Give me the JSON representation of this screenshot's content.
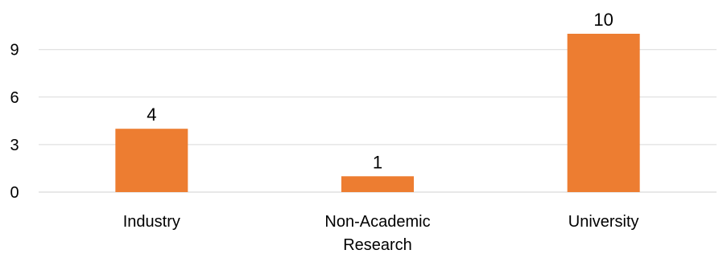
{
  "chart_data": {
    "type": "bar",
    "title": "",
    "xlabel": "",
    "ylabel": "",
    "categories": [
      "Industry",
      "Non-Academic Research",
      "University"
    ],
    "category_lines": [
      [
        "Industry"
      ],
      [
        "Non-Academic",
        "Research"
      ],
      [
        "University"
      ]
    ],
    "values": [
      4,
      1,
      10
    ],
    "data_labels": [
      "4",
      "1",
      "10"
    ],
    "yticks": [
      "0",
      "3",
      "6",
      "9"
    ],
    "ylim": [
      0,
      10
    ],
    "grid": true,
    "legend": "none",
    "bar_color": "#ed7d31",
    "grid_color": "#d9d9d9"
  }
}
